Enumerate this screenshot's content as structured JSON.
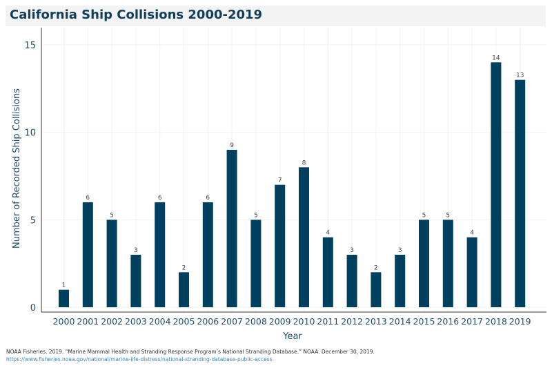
{
  "chart_data": {
    "type": "bar",
    "title": "California Ship Collisions 2000-2019",
    "xlabel": "Year",
    "ylabel": "Number of Recorded Ship Collisions",
    "categories": [
      "2000",
      "2001",
      "2002",
      "2003",
      "2004",
      "2005",
      "2006",
      "2007",
      "2008",
      "2009",
      "2010",
      "2011",
      "2012",
      "2013",
      "2014",
      "2015",
      "2016",
      "2017",
      "2018",
      "2019"
    ],
    "values": [
      1,
      6,
      5,
      3,
      6,
      2,
      6,
      9,
      5,
      7,
      8,
      4,
      3,
      2,
      3,
      5,
      5,
      4,
      14,
      13
    ],
    "ylim": [
      0,
      16
    ],
    "yticks": [
      0,
      5,
      10,
      15
    ],
    "grid": true,
    "bar_color": "#00405f"
  },
  "source": {
    "citation": "NOAA Fisheries. 2019. “Marine Mammal Health and Stranding Response Program’s National Stranding Database.” NOAA. December 30, 2019.",
    "url": "https://www.fisheries.noaa.gov/national/marine-life-distress/national-stranding-database-public-access"
  }
}
